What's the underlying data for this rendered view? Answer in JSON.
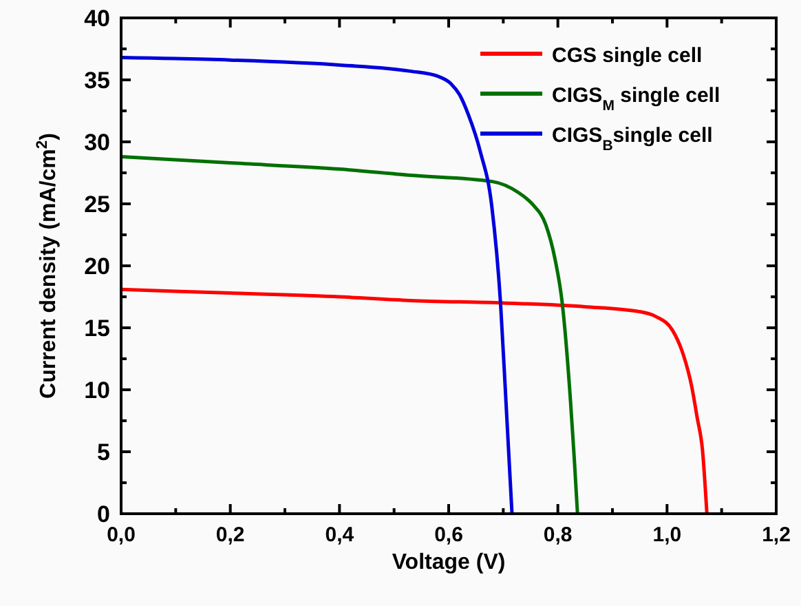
{
  "chart_data": {
    "type": "line",
    "xlabel": "Voltage (V)",
    "ylabel": "Current density (mA/cm$^{2}$)",
    "xlim": [
      0,
      1.2
    ],
    "ylim": [
      0,
      40
    ],
    "xticks": [
      {
        "value": 0,
        "label": "0,0"
      },
      {
        "value": 0.2,
        "label": "0,2"
      },
      {
        "value": 0.4,
        "label": "0,4"
      },
      {
        "value": 0.6,
        "label": "0,6"
      },
      {
        "value": 0.8,
        "label": "0,8"
      },
      {
        "value": 1,
        "label": "1,0"
      },
      {
        "value": 1.2,
        "label": "1,2"
      }
    ],
    "yticks": [
      0,
      5,
      10,
      15,
      20,
      25,
      30,
      35,
      40
    ],
    "grid": false,
    "legend": "top right",
    "marker": "none",
    "line_style": "solid",
    "series": [
      {
        "name": "CGS single cell",
        "color": "#ff0000",
        "x": [
          0,
          0.2,
          0.4,
          0.53,
          0.7,
          0.85,
          0.95,
          0.98,
          1.01,
          1.03,
          1.045,
          1.055,
          1.065,
          1.073
        ],
        "values": [
          18.1,
          17.8,
          17.5,
          17.2,
          17.0,
          16.7,
          16.3,
          15.9,
          14.8,
          12.8,
          10.3,
          7.8,
          5.1,
          0
        ]
      },
      {
        "name": "CIGS$_{M}$ single cell",
        "color": "#007000",
        "x": [
          0,
          0.2,
          0.4,
          0.53,
          0.68,
          0.728,
          0.755,
          0.778,
          0.795,
          0.808,
          0.823,
          0.83,
          0.836
        ],
        "values": [
          28.8,
          28.3,
          27.8,
          27.3,
          26.8,
          25.9,
          24.9,
          23.3,
          20.5,
          17,
          9.2,
          4.5,
          0
        ]
      },
      {
        "name": "CIGS$_{B}$single cell",
        "color": "#0000dd",
        "x": [
          0,
          0.2,
          0.4,
          0.53,
          0.58,
          0.604,
          0.62,
          0.636,
          0.658,
          0.679,
          0.695,
          0.705,
          0.716
        ],
        "values": [
          36.8,
          36.6,
          36.2,
          35.7,
          35.3,
          34.7,
          33.8,
          32.2,
          29.2,
          24.8,
          17,
          9,
          0
        ]
      }
    ]
  }
}
